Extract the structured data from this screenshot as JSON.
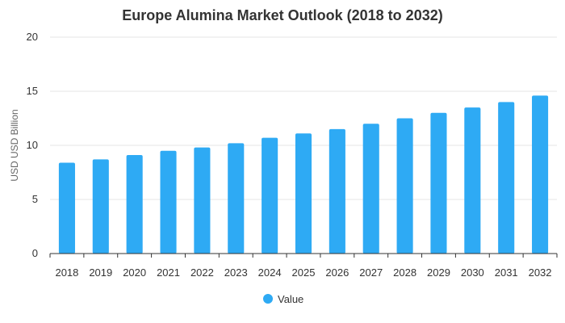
{
  "chart_data": {
    "type": "bar",
    "title": "Europe Alumina Market Outlook (2018 to 2032)",
    "xlabel": "",
    "ylabel": "USD USD Billion",
    "categories": [
      "2018",
      "2019",
      "2020",
      "2021",
      "2022",
      "2023",
      "2024",
      "2025",
      "2026",
      "2027",
      "2028",
      "2029",
      "2030",
      "2031",
      "2032"
    ],
    "series": [
      {
        "name": "Value",
        "color": "#2eaaf4",
        "values": [
          8.4,
          8.7,
          9.1,
          9.5,
          9.8,
          10.2,
          10.7,
          11.1,
          11.5,
          12.0,
          12.5,
          13.0,
          13.5,
          14.0,
          14.6
        ]
      }
    ],
    "ylim": [
      0,
      20
    ],
    "yticks": [
      "0",
      "5",
      "10",
      "15",
      "20"
    ],
    "grid": true,
    "legend_position": "bottom-center"
  }
}
